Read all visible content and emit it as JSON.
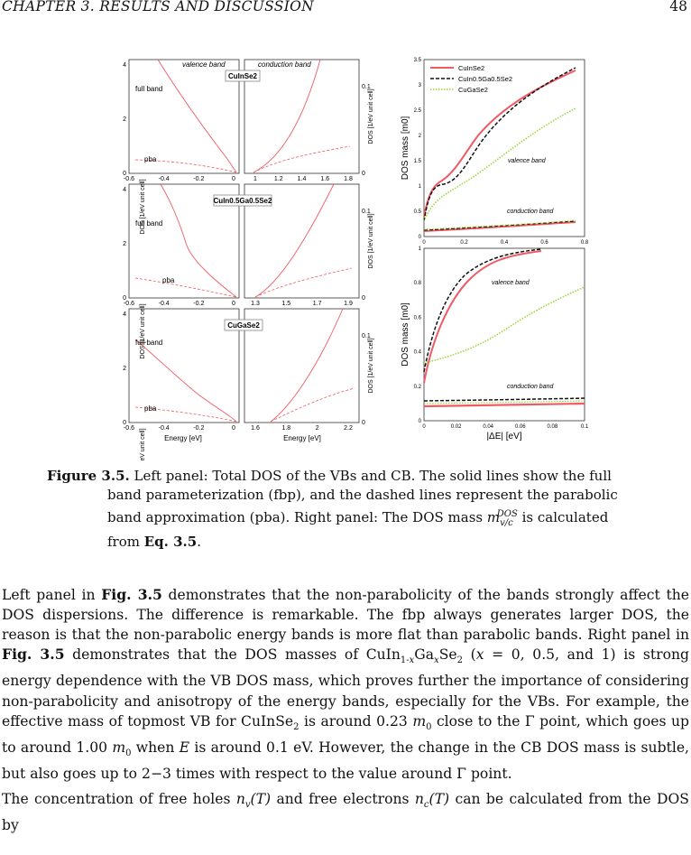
{
  "header": {
    "chapter": "CHAPTER 3.  RESULTS AND DISCUSSION",
    "page_number": "48"
  },
  "figure": {
    "left": {
      "panels": [
        {
          "material": "CuInSe2",
          "full_label": "full band",
          "pba_label": "pba",
          "x_ticks_vb": [
            "-0.6",
            "-0.4",
            "-0.2",
            "0"
          ],
          "x_ticks_cb": [
            "1",
            "1.2",
            "1.4",
            "1.6",
            "1.8"
          ]
        },
        {
          "material": "CuIn0.5Ga0.5Se2",
          "full_label": "full band",
          "pba_label": "pba",
          "x_ticks_vb": [
            "-0.6",
            "-0.4",
            "-0.2",
            "0"
          ],
          "x_ticks_cb": [
            "1.3",
            "1.5",
            "1.7",
            "1.9"
          ]
        },
        {
          "material": "CuGaSe2",
          "full_label": "full band",
          "pba_label": "pba",
          "x_ticks_vb": [
            "-0.6",
            "-0.4",
            "-0.2",
            "0"
          ],
          "x_ticks_cb": [
            "1.6",
            "1.8",
            "2",
            "2.2"
          ]
        }
      ],
      "y_ticks_left": [
        "0",
        "2",
        "4"
      ],
      "y_ticks_right": [
        "0",
        "0.1"
      ],
      "vb_label": "valence band",
      "cb_label": "conduction band",
      "ylabel_left": "DOS [1/eV unit cell]",
      "ylabel_right": "DOS [1/eV unit cell]",
      "xlabel": "Energy [eV]"
    },
    "right": {
      "legend": [
        "CuInSe2",
        "CuIn0.5Ga0.5Se2",
        "CuGaSe2"
      ],
      "top": {
        "ylabel": "DOS mass [m0]",
        "y_ticks": [
          "0",
          "0.5",
          "1",
          "1.5",
          "2",
          "2.5",
          "3",
          "3.5"
        ],
        "x_ticks": [
          "0",
          "0.2",
          "0.4",
          "0.6",
          "0.8"
        ],
        "vb_label": "valence band",
        "cb_label": "conduction band"
      },
      "bottom": {
        "ylabel": "DOS mass [m0]",
        "y_ticks": [
          "0",
          "0.2",
          "0.4",
          "0.6",
          "0.8",
          "1"
        ],
        "x_ticks": [
          "0",
          "0.02",
          "0.04",
          "0.06",
          "0.08",
          "0.1"
        ],
        "vb_label": "valence band",
        "cb_label": "conduction band",
        "xlabel": "|ΔE|  [eV]"
      }
    },
    "colors": {
      "cuinse2": "#f05a64",
      "mixed": "#111111",
      "cugase2": "#9ad531"
    }
  },
  "caption": {
    "label": "Figure 3.5.",
    "text1": " Left panel:  Total DOS of the VBs and CB. The solid lines show the full",
    "text2": "band parameterization (fbp), and the dashed lines represent the parabolic",
    "text3": "band approximation (pba). Right panel: The DOS mass ",
    "text3b": " is calculated",
    "text4a": "from ",
    "text4b": "Eq. 3.5",
    "text4c": "."
  },
  "body": {
    "p1": "Left panel in Fig. 3.5 demonstrates that the non-parabolicity of the bands strongly affect the DOS dispersions.  The difference is remarkable.  The fbp always generates larger DOS, the reason is that the non-parabolic energy bands is more flat than parabolic bands. Right panel in Fig. 3.5 demonstrates that the DOS masses of CuIn1-xGaxSe2 (x = 0, 0.5, and 1) is strong energy dependence with the VB DOS mass, which proves further the importance of considering non-parabolicity and anisotropy of the energy bands, especially for the VBs.  For example, the effective mass of topmost VB for CuInSe2 is around 0.23 m0 close to the Γ point, which goes up to around 1.00 m0 when E is around 0.1 eV. However, the change in the CB DOS mass is subtle, but also goes up to 2−3 times with respect to the value around Γ point.",
    "p2": "The concentration of free holes nv(T) and free electrons nc(T) can be calculated from the DOS by"
  }
}
